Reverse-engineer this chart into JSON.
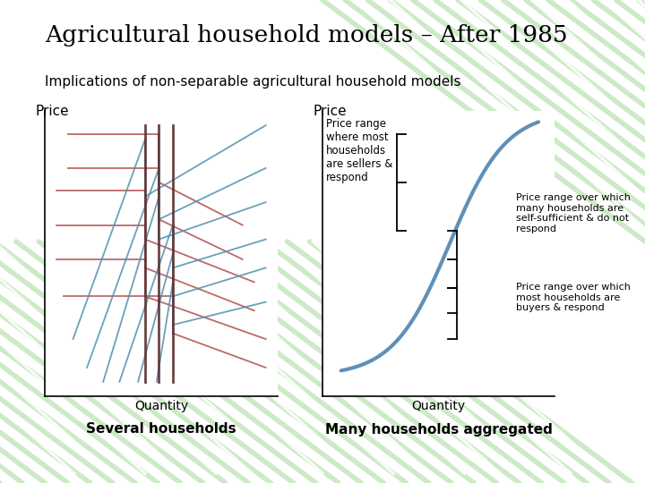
{
  "title": "Agricultural household models – After 1985",
  "subtitle": "Implications of non-separable agricultural household models",
  "left_xlabel": "Quantity",
  "left_ylabel": "Price",
  "left_caption": "Several households",
  "right_xlabel": "Quantity",
  "right_ylabel": "Price",
  "right_caption": "Many households aggregated",
  "bg_color": "#ffffff",
  "text_color": "#000000",
  "red_color": "#b05050",
  "blue_color": "#5090b0",
  "dark_color": "#5a3030",
  "curve_color": "#6090b8",
  "annotation1": "Price range\nwhere most\nhouseholds\nare sellers &\nrespond",
  "annotation2": "Price range over which\nmany households are\nself-sufficient & do not\nrespond",
  "annotation3": "Price range over which\nmost households are\nbuyers & respond",
  "stripe_color": "#c8e8c0",
  "stripe_alpha": 0.7
}
